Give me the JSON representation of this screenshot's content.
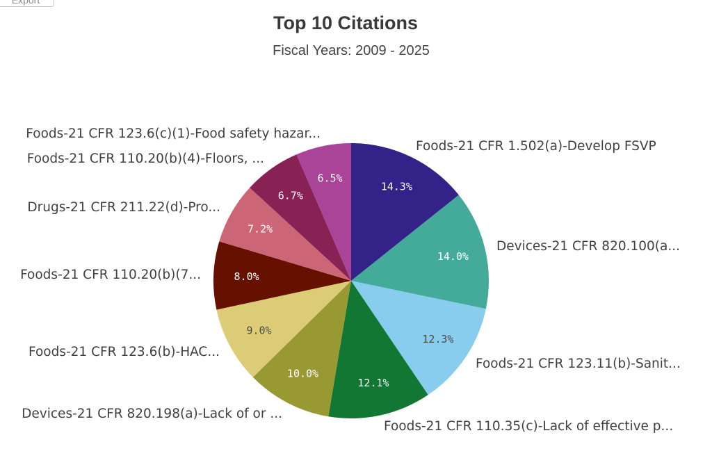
{
  "toolbar": {
    "export_label": "Export"
  },
  "chart_data": {
    "type": "pie",
    "title": "Top 10 Citations",
    "subtitle": "Fiscal Years: 2009 - 2025",
    "slices": [
      {
        "label": "Foods-21 CFR 1.502(a)-Develop FSVP",
        "value": 14.3,
        "display": "14.3%",
        "color": "#332288",
        "label_color": "#ffffff"
      },
      {
        "label": "Devices-21 CFR 820.100(a...",
        "value": 14.0,
        "display": "14.0%",
        "color": "#44aa99",
        "label_color": "#ffffff"
      },
      {
        "label": "Foods-21 CFR 123.11(b)-Sanit...",
        "value": 12.3,
        "display": "12.3%",
        "color": "#88ccee",
        "label_color": "#4a4a4a"
      },
      {
        "label": "Foods-21 CFR 110.35(c)-Lack of effective p...",
        "value": 12.1,
        "display": "12.1%",
        "color": "#117733",
        "label_color": "#ffffff"
      },
      {
        "label": "Devices-21 CFR 820.198(a)-Lack of or ...",
        "value": 10.0,
        "display": "10.0%",
        "color": "#999933",
        "label_color": "#ffffff"
      },
      {
        "label": "Foods-21 CFR 123.6(b)-HAC...",
        "value": 9.0,
        "display": "9.0%",
        "color": "#ddcc77",
        "label_color": "#4a4a4a"
      },
      {
        "label": "Foods-21 CFR 110.20(b)(7...",
        "value": 8.0,
        "display": "8.0%",
        "color": "#661100",
        "label_color": "#ffffff"
      },
      {
        "label": "Drugs-21 CFR 211.22(d)-Pro...",
        "value": 7.2,
        "display": "7.2%",
        "color": "#cc6677",
        "label_color": "#ffffff"
      },
      {
        "label": "Foods-21 CFR 110.20(b)(4)-Floors, ...",
        "value": 6.7,
        "display": "6.7%",
        "color": "#882255",
        "label_color": "#ffffff"
      },
      {
        "label": "Foods-21 CFR 123.6(c)(1)-Food safety hazar...",
        "value": 6.5,
        "display": "6.5%",
        "color": "#aa4499",
        "label_color": "#ffffff"
      }
    ]
  }
}
